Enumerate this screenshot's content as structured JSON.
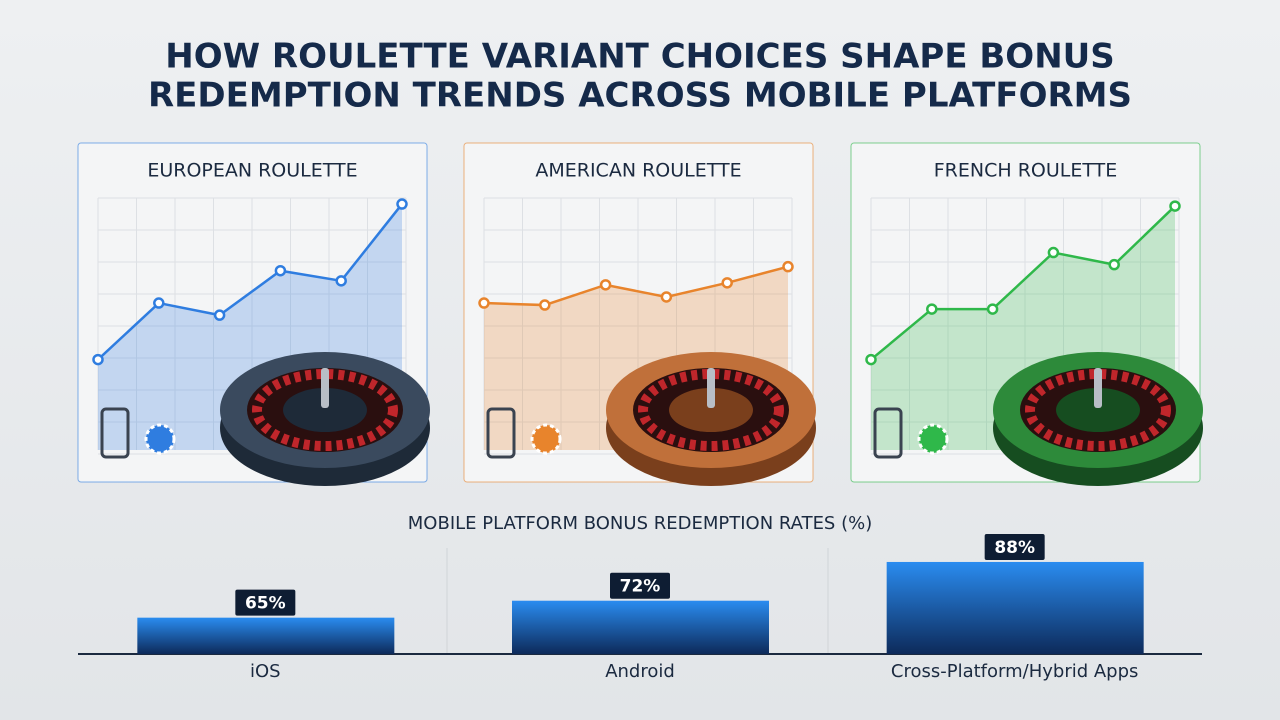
{
  "title": [
    "HOW ROULETTE VARIANT CHOICES SHAPE BONUS",
    "REDEMPTION TRENDS ACROSS MOBILE PLATFORMS"
  ],
  "chart_data": [
    {
      "type": "line",
      "title": "EUROPEAN ROULETTE",
      "color": "#2f7de0",
      "values": [
        20,
        48,
        42,
        64,
        59,
        97
      ],
      "ylim": [
        0,
        100
      ]
    },
    {
      "type": "line",
      "title": "AMERICAN ROULETTE",
      "color": "#e8842c",
      "values": [
        48,
        47,
        57,
        51,
        58,
        66
      ],
      "ylim": [
        0,
        100
      ]
    },
    {
      "type": "line",
      "title": "FRENCH ROULETTE",
      "color": "#2fb84a",
      "values": [
        20,
        45,
        45,
        73,
        67,
        96
      ],
      "ylim": [
        0,
        100
      ]
    },
    {
      "type": "bar",
      "title": "MOBILE PLATFORM BONUS REDEMPTION RATES (%)",
      "categories": [
        "iOS",
        "Android",
        "Cross-Platform/Hybrid Apps"
      ],
      "values": [
        65,
        72,
        88
      ],
      "value_labels": [
        "65%",
        "72%",
        "88%"
      ],
      "color": "#1f7fe0",
      "ylim": [
        50,
        95
      ]
    }
  ]
}
